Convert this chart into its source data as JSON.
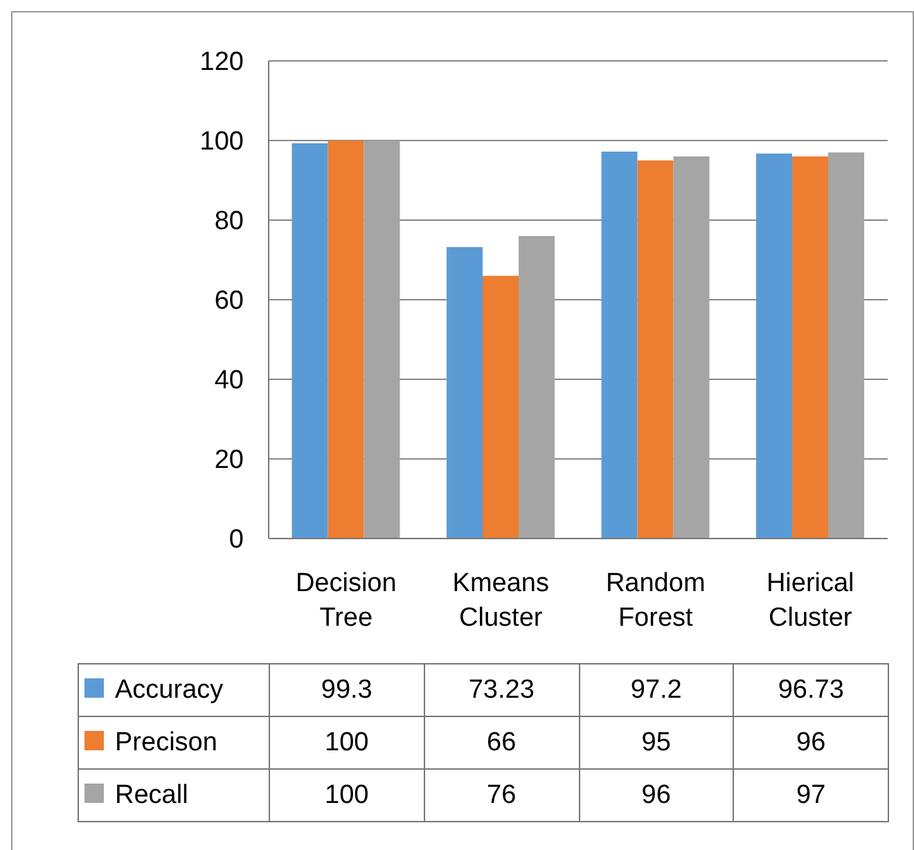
{
  "chart_data": {
    "type": "bar",
    "categories": [
      "Decision Tree",
      "Kmeans Cluster",
      "Random Forest",
      "Hierical Cluster"
    ],
    "series": [
      {
        "name": "Accuracy",
        "color": "#5b9bd5",
        "values": [
          99.3,
          73.23,
          97.2,
          96.73
        ]
      },
      {
        "name": "Precison",
        "color": "#ed7d31",
        "values": [
          100,
          66,
          95,
          96
        ]
      },
      {
        "name": "Recall",
        "color": "#a5a5a5",
        "values": [
          100,
          76,
          96,
          97
        ]
      }
    ],
    "ylim": [
      0,
      120
    ],
    "yticks": [
      0,
      20,
      40,
      60,
      80,
      100,
      120
    ],
    "grid": "y",
    "legend": "bottom",
    "data_labels": true
  }
}
